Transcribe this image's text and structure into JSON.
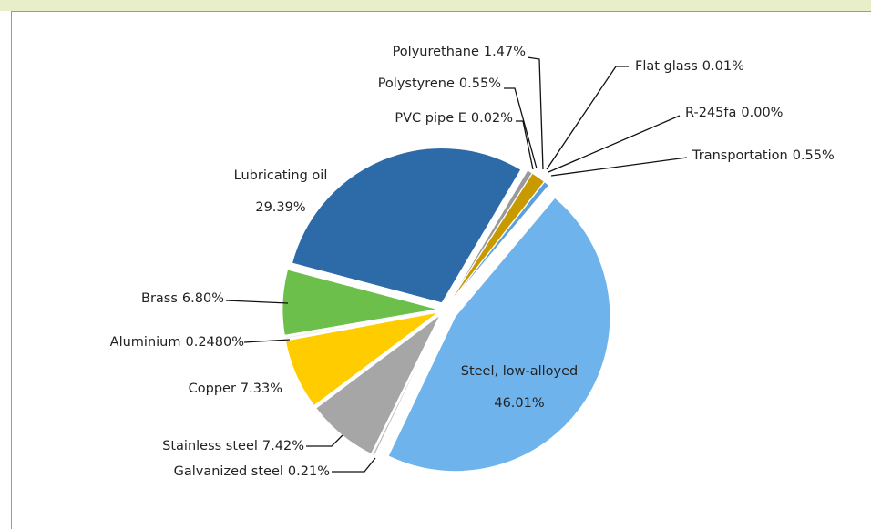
{
  "chart_data": {
    "type": "pie",
    "categories": [
      "Steel, low-alloyed",
      "Galvanized steel",
      "Stainless steel",
      "Copper",
      "Aluminium",
      "Brass",
      "Lubricating oil",
      "PVC pipe E",
      "Polystyrene",
      "Polyurethane",
      "Flat glass",
      "R-245fa",
      "Transportation"
    ],
    "values": [
      46.01,
      0.21,
      7.42,
      7.33,
      0.248,
      6.8,
      29.39,
      0.02,
      0.55,
      1.47,
      0.01,
      0,
      0.55
    ],
    "value_labels": [
      "46.01%",
      "0.21%",
      "7.42%",
      "7.33%",
      "0.2480%",
      "6.80%",
      "29.39%",
      "0.02%",
      "0.55%",
      "1.47%",
      "0.01%",
      "0.00%",
      "0.55%"
    ],
    "colors": [
      "#6fb3ec",
      "#b8b8b8",
      "#a6a6a6",
      "#ffcc00",
      "#f2f2f2",
      "#6cbf4a",
      "#2c6ba8",
      "#404040",
      "#9a9a9a",
      "#c99a00",
      "#d9d9d9",
      "#e6e6e6",
      "#5aa0de"
    ]
  }
}
